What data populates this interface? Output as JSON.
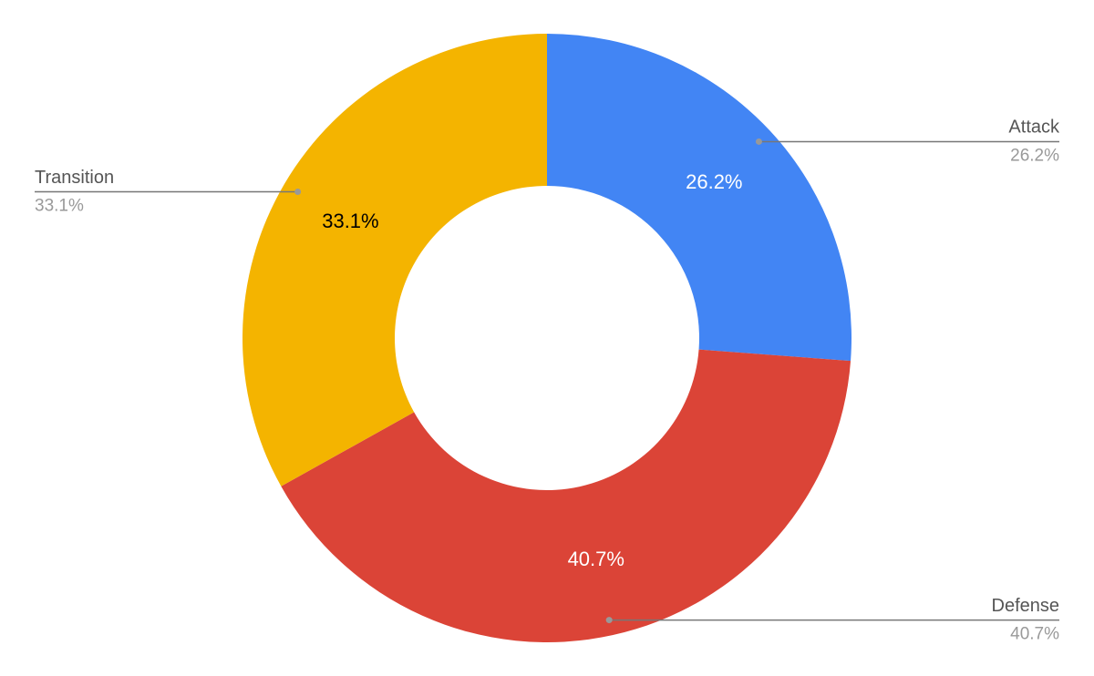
{
  "chart_data": {
    "type": "donut",
    "categories": [
      "Attack",
      "Defense",
      "Transition"
    ],
    "values": [
      26.2,
      40.7,
      33.1
    ],
    "value_labels": [
      "26.2%",
      "40.7%",
      "33.1%"
    ],
    "colors": [
      "#4285f4",
      "#db4437",
      "#f4b400"
    ],
    "value_label_colors": [
      "#ffffff",
      "#ffffff",
      "#000000"
    ]
  }
}
